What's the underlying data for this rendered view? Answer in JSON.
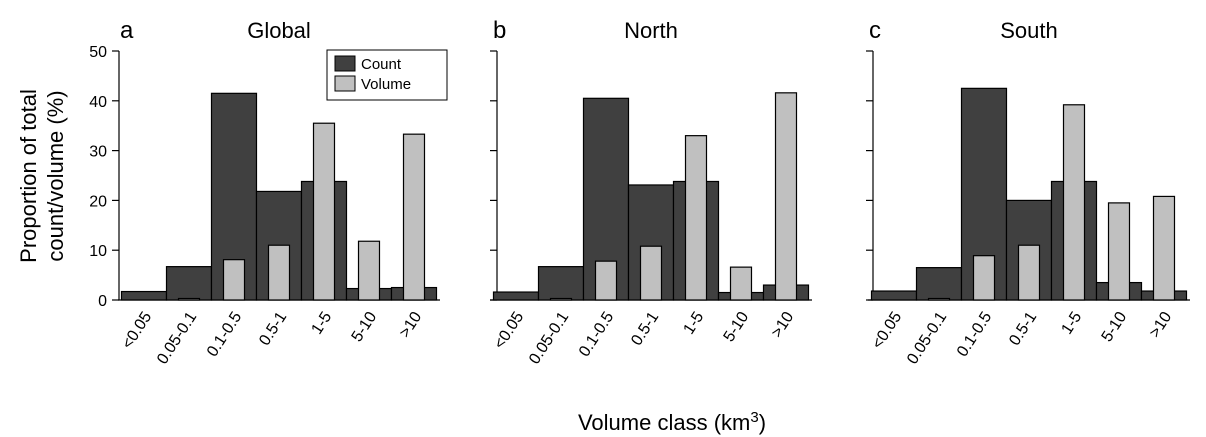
{
  "figure": {
    "ylabel_line1": "Proportion of total",
    "ylabel_line2": "count/volume (%)",
    "xlabel": "Volume class (km",
    "xlabel_sup": "3",
    "xlabel_end": ")"
  },
  "legend": [
    {
      "name": "Count",
      "color": "#404040"
    },
    {
      "name": "Volume",
      "color": "#c0c0c0"
    }
  ],
  "chart_data": [
    {
      "type": "bar",
      "letter": "a",
      "title": "Global",
      "categories": [
        "<0.05",
        "0.05-0.1",
        "0.1-0.5",
        "0.5-1",
        "1-5",
        "5-10",
        ">10"
      ],
      "series": [
        {
          "name": "Count",
          "values": [
            1.7,
            6.7,
            41.5,
            21.8,
            23.8,
            2.3,
            2.5
          ]
        },
        {
          "name": "Volume",
          "values": [
            0.0,
            0.3,
            8.1,
            11.0,
            35.5,
            11.8,
            33.3
          ]
        }
      ],
      "ylim": [
        0,
        50
      ],
      "yticks": [
        0,
        10,
        20,
        30,
        40,
        50
      ],
      "legend": "top-right"
    },
    {
      "type": "bar",
      "letter": "b",
      "title": "North",
      "categories": [
        "<0.05",
        "0.05-0.1",
        "0.1-0.5",
        "0.5-1",
        "1-5",
        "5-10",
        ">10"
      ],
      "series": [
        {
          "name": "Count",
          "values": [
            1.6,
            6.7,
            40.5,
            23.1,
            23.8,
            1.5,
            3.0
          ]
        },
        {
          "name": "Volume",
          "values": [
            0.0,
            0.3,
            7.8,
            10.8,
            33.0,
            6.6,
            41.6
          ]
        }
      ],
      "ylim": [
        0,
        50
      ],
      "yticks": [
        0,
        10,
        20,
        30,
        40,
        50
      ]
    },
    {
      "type": "bar",
      "letter": "c",
      "title": "South",
      "categories": [
        "<0.05",
        "0.05-0.1",
        "0.1-0.5",
        "0.5-1",
        "1-5",
        "5-10",
        ">10"
      ],
      "series": [
        {
          "name": "Count",
          "values": [
            1.8,
            6.5,
            42.5,
            20.0,
            23.8,
            3.5,
            1.8
          ]
        },
        {
          "name": "Volume",
          "values": [
            0.0,
            0.3,
            8.9,
            11.0,
            39.2,
            19.5,
            20.8
          ]
        }
      ],
      "ylim": [
        0,
        50
      ],
      "yticks": [
        0,
        10,
        20,
        30,
        40,
        50
      ]
    }
  ]
}
